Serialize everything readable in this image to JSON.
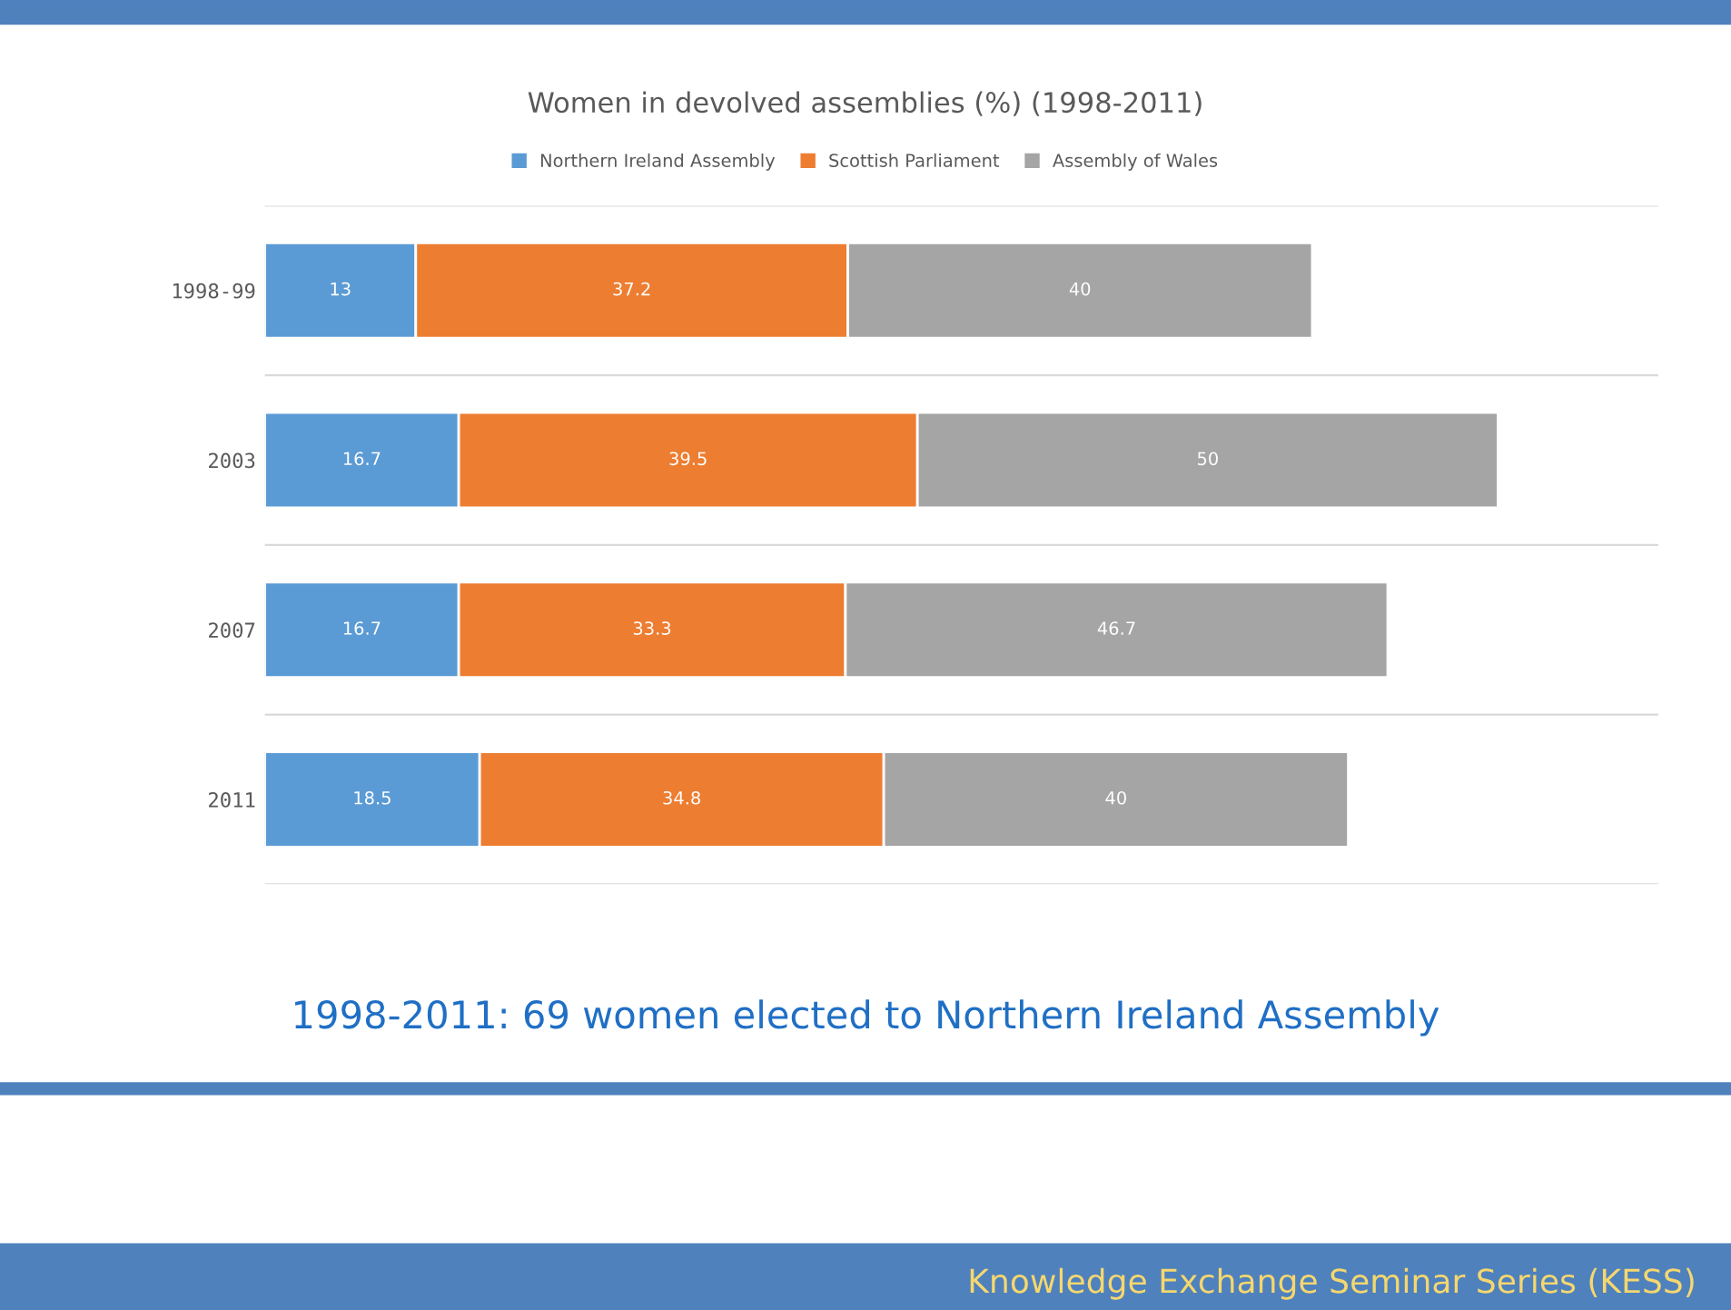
{
  "chart_data": {
    "type": "bar",
    "orientation": "horizontal",
    "stacked": true,
    "title": "Women in devolved assemblies (%) (1998-2011)",
    "categories": [
      "1998-99",
      "2003",
      "2007",
      "2011"
    ],
    "series": [
      {
        "name": "Northern Ireland Assembly",
        "color": "#5b9bd5",
        "values": [
          13,
          16.7,
          16.7,
          18.5
        ]
      },
      {
        "name": "Scottish Parliament",
        "color": "#ed7d31",
        "values": [
          37.2,
          39.5,
          33.3,
          34.8
        ]
      },
      {
        "name": "Assembly of Wales",
        "color": "#a5a5a5",
        "values": [
          40,
          50,
          46.7,
          40
        ]
      }
    ],
    "xlim": [
      0,
      120
    ],
    "data_labels": true,
    "legend": "top",
    "grid": "y",
    "tick_labels": "y",
    "annotations": [
      "1998-2011: 69 women elected to Northern Ireland Assembly",
      "Knowledge Exchange Seminar Series (KESS)"
    ]
  }
}
